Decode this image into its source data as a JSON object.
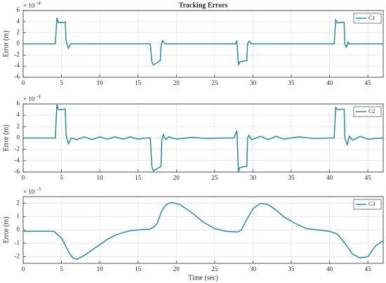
{
  "chart_data": [
    {
      "type": "line",
      "title": "Tracking Errors",
      "ylabel": "Error (m)",
      "y_exponent_base": "× 10",
      "y_exponent": -4,
      "xlim": [
        0,
        47
      ],
      "xticks": [
        0,
        5,
        10,
        15,
        20,
        25,
        30,
        35,
        40,
        45
      ],
      "ylim": [
        -6,
        6
      ],
      "yticks": [
        -6,
        -4,
        -2,
        0,
        2,
        4,
        6
      ],
      "grid": true,
      "legend": "upper right",
      "x": [
        0,
        4.2,
        4.4,
        4.6,
        5.5,
        5.6,
        5.9,
        6.2,
        16.6,
        16.8,
        17.0,
        17.9,
        18.0,
        18.2,
        18.5,
        27.7,
        27.9,
        28.1,
        28.3,
        29.2,
        29.3,
        29.5,
        29.8,
        40.6,
        40.8,
        41.0,
        41.9,
        42.0,
        42.2,
        42.4,
        42.6,
        47
      ],
      "series": [
        {
          "name": "C1",
          "color": "#2a8a96",
          "values": [
            0,
            0,
            4.7,
            3.8,
            3.9,
            0.5,
            -0.8,
            0,
            0,
            -3.2,
            -3.8,
            -3.0,
            -0.3,
            0.6,
            0,
            0,
            0.5,
            -3.8,
            -3.2,
            -3.0,
            0,
            0.5,
            0,
            0,
            4.3,
            3.8,
            3.9,
            0,
            -0.6,
            0.3,
            0,
            0
          ]
        }
      ]
    },
    {
      "type": "line",
      "ylabel": "Error (m)",
      "y_exponent_base": "× 10",
      "y_exponent": -4,
      "xlim": [
        0,
        47
      ],
      "xticks": [
        0,
        5,
        10,
        15,
        20,
        25,
        30,
        35,
        40,
        45
      ],
      "ylim": [
        -6,
        6
      ],
      "yticks": [
        -6,
        -4,
        -2,
        0,
        2,
        4,
        6
      ],
      "grid": true,
      "legend": "upper right",
      "x": [
        0,
        4.2,
        4.4,
        4.6,
        5.5,
        5.6,
        5.9,
        6.3,
        7,
        8,
        9,
        10,
        11,
        12,
        13,
        14,
        15,
        16,
        16.6,
        16.8,
        17.0,
        18.0,
        18.1,
        18.3,
        18.6,
        19,
        20,
        22,
        24,
        26,
        27.5,
        27.9,
        28.1,
        28.3,
        29.2,
        29.3,
        29.5,
        29.8,
        31,
        32,
        33,
        34,
        36,
        38,
        40,
        40.6,
        40.8,
        41.0,
        41.9,
        42.0,
        42.3,
        42.6,
        43,
        44,
        45,
        47
      ],
      "series": [
        {
          "name": "C2",
          "color": "#2a8a96",
          "values": [
            0,
            0,
            5.9,
            5.0,
            5.1,
            0.5,
            -1.0,
            0,
            -0.3,
            0.2,
            -0.3,
            0.2,
            -0.2,
            0.2,
            -0.2,
            0.2,
            -0.2,
            0,
            0,
            -5.0,
            -5.8,
            -5.0,
            -0.3,
            0.6,
            -0.3,
            0.2,
            -0.2,
            0.1,
            -0.1,
            0,
            0,
            1.3,
            -6.0,
            -5.2,
            -5.0,
            0,
            0.5,
            -0.3,
            0.3,
            -0.3,
            0.3,
            -0.2,
            0.2,
            -0.1,
            0,
            0,
            5.4,
            5.0,
            5.1,
            0,
            -1.2,
            0.3,
            -0.4,
            0.3,
            -0.2,
            0
          ]
        }
      ]
    },
    {
      "type": "line",
      "ylabel": "Error (m)",
      "xlabel": "Time (sec)",
      "y_exponent_base": "× 10",
      "y_exponent": -3,
      "xlim": [
        0,
        47
      ],
      "xticks": [
        0,
        5,
        10,
        15,
        20,
        25,
        30,
        35,
        40,
        45
      ],
      "ylim": [
        -2.5,
        2.5
      ],
      "yticks": [
        -2,
        -1,
        0,
        1,
        2
      ],
      "grid": true,
      "legend": "upper right",
      "x": [
        0,
        4,
        5,
        6,
        6.5,
        7,
        8,
        9,
        10,
        11,
        12,
        13,
        14,
        15,
        16,
        16.5,
        17,
        17.5,
        18,
        18.5,
        19,
        19.5,
        20.5,
        22,
        23.5,
        25,
        26.5,
        28,
        28.5,
        29,
        30,
        31,
        32,
        33,
        34,
        35.5,
        37,
        38.5,
        40,
        41,
        42,
        43,
        44,
        45,
        46,
        47
      ],
      "series": [
        {
          "name": "C3",
          "color": "#2a8a96",
          "values": [
            -0.1,
            -0.1,
            -0.6,
            -1.7,
            -2.1,
            -2.2,
            -1.9,
            -1.5,
            -1.1,
            -0.7,
            -0.4,
            -0.2,
            -0.05,
            0,
            0.05,
            0.05,
            0.2,
            0.5,
            1.3,
            1.8,
            2.0,
            2.05,
            1.9,
            1.3,
            0.6,
            0.1,
            -0.1,
            -0.15,
            0,
            0.6,
            1.6,
            2.0,
            1.9,
            1.5,
            1.0,
            0.5,
            0.1,
            0,
            -0.1,
            -0.3,
            -1.0,
            -1.8,
            -2.1,
            -2.0,
            -1.2,
            -0.8
          ]
        }
      ]
    }
  ]
}
